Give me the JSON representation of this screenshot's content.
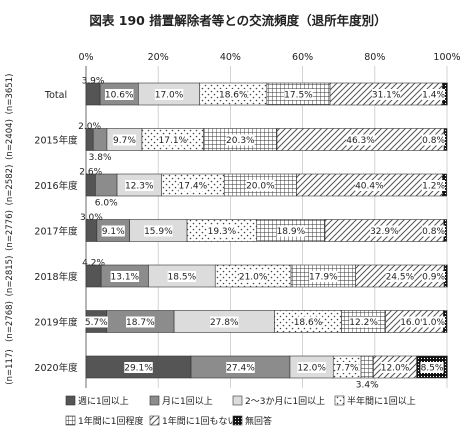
{
  "chart_data": {
    "type": "bar",
    "orientation": "horizontal",
    "stacked": true,
    "title": "図表 190 措置解除者等との交流頻度（退所年度別）",
    "x_ticks": [
      "0%",
      "20%",
      "40%",
      "60%",
      "80%",
      "100%"
    ],
    "xlim": [
      0,
      100
    ],
    "grid": true,
    "legend_position": "bottom",
    "categories": [
      "Total",
      "2015年度",
      "2016年度",
      "2017年度",
      "2018年度",
      "2019年度",
      "2020年度"
    ],
    "n_labels": [
      "(n=3651)",
      "(n=2404)",
      "(n=2582)",
      "(n=2776)",
      "(n=2815)",
      "(n=2768)",
      "(n=117)"
    ],
    "series": [
      {
        "name": "週に1回以上",
        "color": "#555555",
        "pattern": "solid-dark",
        "values": [
          3.9,
          2.0,
          2.6,
          3.0,
          4.2,
          5.7,
          29.1
        ],
        "labels": [
          "3.9%",
          "2.0%",
          "2.6%",
          "3.0%",
          "4.2%",
          "5.7%",
          "29.1%"
        ]
      },
      {
        "name": "月に1回以上",
        "color": "#8c8c8c",
        "pattern": "solid-mid",
        "values": [
          10.6,
          3.8,
          6.0,
          9.1,
          13.1,
          18.7,
          27.4
        ],
        "labels": [
          "10.6%",
          "3.8%",
          "6.0%",
          "9.1%",
          "13.1%",
          "18.7%",
          "27.4%"
        ]
      },
      {
        "name": "2～3か月に1回以上",
        "color": "#dcdcdc",
        "pattern": "solid-light",
        "values": [
          17.0,
          9.7,
          12.3,
          15.9,
          18.5,
          27.8,
          12.0
        ],
        "labels": [
          "17.0%",
          "9.7%",
          "12.3%",
          "15.9%",
          "18.5%",
          "27.8%",
          "12.0%"
        ]
      },
      {
        "name": "半年間に1回以上",
        "color": "#ffffff",
        "pattern": "dots",
        "values": [
          18.6,
          17.1,
          17.4,
          19.3,
          21.0,
          18.6,
          7.7
        ],
        "labels": [
          "18.6%",
          "17.1%",
          "17.4%",
          "19.3%",
          "21.0%",
          "18.6%",
          "7.7%"
        ]
      },
      {
        "name": "1年間に1回程度",
        "color": "#ffffff",
        "pattern": "crosshatch",
        "values": [
          17.5,
          20.3,
          20.0,
          18.9,
          17.9,
          12.2,
          3.4
        ],
        "labels": [
          "17.5%",
          "20.3%",
          "20.0%",
          "18.9%",
          "17.9%",
          "12.2%",
          "3.4%"
        ]
      },
      {
        "name": "1年間に1回もない",
        "color": "#ffffff",
        "pattern": "diagonal",
        "values": [
          31.1,
          46.3,
          40.4,
          32.9,
          24.5,
          16.0,
          12.0
        ],
        "labels": [
          "31.1%",
          "46.3%",
          "40.4%",
          "32.9%",
          "24.5%",
          "16.0%",
          "12.0%"
        ]
      },
      {
        "name": "無回答",
        "color": "#111111",
        "pattern": "dense-dots",
        "values": [
          1.4,
          0.8,
          1.2,
          0.8,
          0.9,
          1.0,
          8.5
        ],
        "labels": [
          "1.4%",
          "0.8%",
          "1.2%",
          "0.8%",
          "0.9%",
          "1.0%",
          "8.5%"
        ]
      }
    ]
  }
}
